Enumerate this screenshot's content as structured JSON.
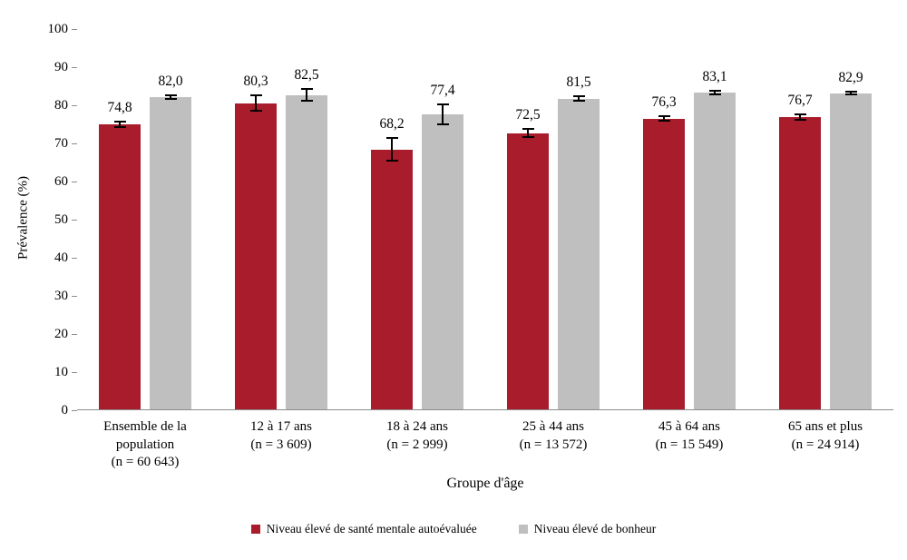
{
  "chart_data": {
    "type": "bar",
    "title": "",
    "xlabel": "Groupe d'âge",
    "ylabel": "Prévalence (%)",
    "ylim": [
      0,
      100
    ],
    "ytick_step": 10,
    "grid": false,
    "legend_position": "bottom",
    "categories": [
      [
        "Ensemble de la",
        "population",
        "(n = 60 643)"
      ],
      [
        "12 à 17 ans",
        "(n = 3 609)"
      ],
      [
        "18 à 24 ans",
        "(n = 2 999)"
      ],
      [
        "25 à 44 ans",
        "(n = 13 572)"
      ],
      [
        "45 à 64 ans",
        "(n = 15 549)"
      ],
      [
        "65 ans et plus",
        "(n = 24 914)"
      ]
    ],
    "series": [
      {
        "name": "Niveau élevé de santé mentale autoévaluée",
        "color": "#a81c2c",
        "values": [
          74.8,
          80.3,
          68.2,
          72.5,
          76.3,
          76.7
        ],
        "labels": [
          "74,8",
          "80,3",
          "68,2",
          "72,5",
          "76,3",
          "76,7"
        ],
        "errors": [
          1.0,
          2.3,
          3.3,
          1.2,
          0.9,
          1.0
        ]
      },
      {
        "name": "Niveau élevé de bonheur",
        "color": "#bfbfbf",
        "values": [
          82.0,
          82.5,
          77.4,
          81.5,
          83.1,
          82.9
        ],
        "labels": [
          "82,0",
          "82,5",
          "77,4",
          "81,5",
          "83,1",
          "82,9"
        ],
        "errors": [
          0.7,
          1.8,
          2.8,
          0.9,
          0.8,
          0.6
        ]
      }
    ]
  }
}
